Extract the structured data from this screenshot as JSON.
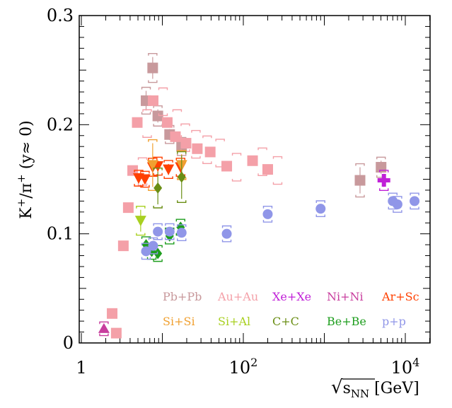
{
  "chart_data": {
    "type": "scatter",
    "title": "",
    "xlabel": "√s_NN [GeV]",
    "xlabel_parts": {
      "root": "√",
      "s": "s",
      "sub": "NN",
      "unit": " [GeV]"
    },
    "ylabel": "K⁺/π⁺ (y≈ 0)",
    "ylabel_parts": {
      "k": "K",
      "sup1": "+",
      "slash": "/π",
      "sup2": "+",
      "rest": " (y≈ 0)"
    },
    "xscale": "log",
    "xlim": [
      1,
      20000
    ],
    "ylim": [
      0,
      0.3
    ],
    "x_ticks": [
      {
        "label": "1",
        "sup": "",
        "value": 1
      },
      {
        "label": "10",
        "sup": "2",
        "value": 100
      },
      {
        "label": "10",
        "sup": "4",
        "value": 10000
      }
    ],
    "y_ticks": [
      {
        "label": "0",
        "value": 0
      },
      {
        "label": "0.1",
        "value": 0.1
      },
      {
        "label": "0.2",
        "value": 0.2
      },
      {
        "label": "0.3",
        "value": 0.3
      }
    ],
    "series": [
      {
        "name": "Pb+Pb",
        "color": "#c8999c",
        "marker": "square",
        "points": [
          [
            6.3,
            0.222,
            0.009
          ],
          [
            7.6,
            0.252,
            0.01
          ],
          [
            8.8,
            0.208,
            0.006
          ],
          [
            12.3,
            0.191,
            0.005
          ],
          [
            17.3,
            0.18,
            0.005
          ],
          [
            2760,
            0.149,
            0.012
          ],
          [
            5020,
            0.161,
            0.006
          ]
        ]
      },
      {
        "name": "Au+Au",
        "color": "#f4a0a8",
        "marker": "square",
        "points": [
          [
            2.4,
            0.027,
            0
          ],
          [
            2.7,
            0.009,
            0
          ],
          [
            3.3,
            0.089,
            0
          ],
          [
            3.8,
            0.124,
            0
          ],
          [
            4.3,
            0.158,
            0
          ],
          [
            4.9,
            0.202,
            0
          ],
          [
            7.7,
            0.222,
            0
          ],
          [
            11.5,
            0.202,
            0
          ],
          [
            14.5,
            0.189,
            0
          ],
          [
            19.6,
            0.183,
            0
          ],
          [
            27,
            0.178,
            0
          ],
          [
            39,
            0.175,
            0
          ],
          [
            62.4,
            0.162,
            0
          ],
          [
            130,
            0.167,
            0
          ],
          [
            200,
            0.159,
            0
          ]
        ]
      },
      {
        "name": "Xe+Xe",
        "color": "#c020d8",
        "marker": "cross",
        "points": [
          [
            5440,
            0.149,
            0.006
          ]
        ]
      },
      {
        "name": "Ni+Ni",
        "color": "#c83e9e",
        "marker": "triangle-up",
        "points": [
          [
            1.9,
            0.013,
            0.003
          ]
        ]
      },
      {
        "name": "Ar+Sc",
        "color": "#ff4000",
        "marker": "triangle-down",
        "points": [
          [
            5.1,
            0.151,
            0.004
          ],
          [
            6.1,
            0.15,
            0.004
          ],
          [
            7.6,
            0.161,
            0.005
          ],
          [
            8.8,
            0.162,
            0.005
          ],
          [
            11.9,
            0.159,
            0.005
          ],
          [
            16.8,
            0.161,
            0.005
          ]
        ]
      },
      {
        "name": "Si+Si",
        "color": "#f0a030",
        "marker": "triangle-down",
        "points": [
          [
            7.6,
            0.163,
            0.02
          ],
          [
            17.3,
            0.163,
            0.01
          ]
        ]
      },
      {
        "name": "Si+Al",
        "color": "#a8d020",
        "marker": "triangle-down",
        "points": [
          [
            5.4,
            0.112,
            0.01
          ]
        ]
      },
      {
        "name": "C+C",
        "color": "#6a8e14",
        "marker": "diamond",
        "points": [
          [
            8.8,
            0.142,
            0.015
          ],
          [
            17.3,
            0.152,
            0.02
          ]
        ]
      },
      {
        "name": "Be+Be",
        "color": "#1e9e1e",
        "marker": "diamond",
        "points": [
          [
            6.3,
            0.09,
            0.004
          ],
          [
            7.4,
            0.084,
            0.004
          ],
          [
            8.8,
            0.082,
            0.004
          ],
          [
            12.3,
            0.098,
            0.004
          ],
          [
            16.8,
            0.106,
            0.004
          ]
        ]
      },
      {
        "name": "p+p",
        "color": "#9096e8",
        "marker": "circle",
        "points": [
          [
            6.3,
            0.084,
            0.004
          ],
          [
            7.7,
            0.089,
            0.004
          ],
          [
            8.8,
            0.102,
            0.004
          ],
          [
            12.3,
            0.102,
            0.004
          ],
          [
            17.3,
            0.101,
            0.004
          ],
          [
            62.4,
            0.1,
            0.004
          ],
          [
            200,
            0.118,
            0.004
          ],
          [
            900,
            0.123,
            0.004
          ],
          [
            7000,
            0.13,
            0.004
          ],
          [
            8000,
            0.127,
            0.004
          ],
          [
            13000,
            0.13,
            0.004
          ]
        ]
      }
    ]
  }
}
